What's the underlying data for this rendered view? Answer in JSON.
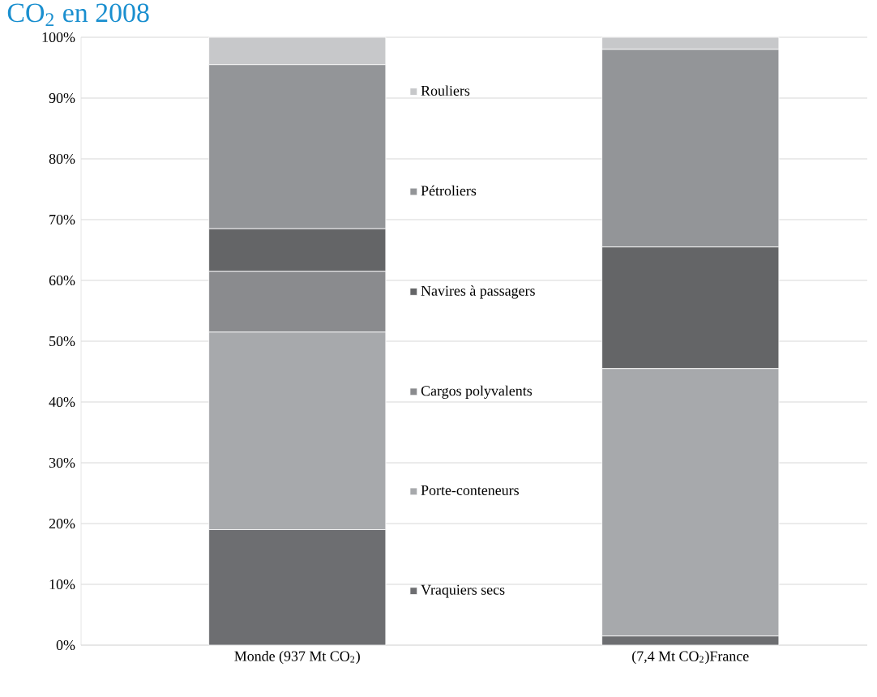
{
  "chart_data": {
    "type": "bar",
    "stacked": true,
    "title": "CO$_{2}$ en 2008",
    "categories": [
      "Monde (937 Mt CO$_{2}$)",
      "(7,4 Mt CO$_{2}$)France"
    ],
    "series": [
      {
        "name": "Vraquiers secs",
        "color": "#6d6e71",
        "values": [
          19,
          1.5
        ]
      },
      {
        "name": "Porte-conteneurs",
        "color": "#a7a9ac",
        "values": [
          32.5,
          44
        ]
      },
      {
        "name": "Cargos polyvalents",
        "color": "#8a8b8e",
        "values": [
          10,
          0
        ]
      },
      {
        "name": "Navires à passagers",
        "color": "#646567",
        "values": [
          7,
          20
        ]
      },
      {
        "name": "Pétroliers",
        "color": "#939598",
        "values": [
          27,
          32.5
        ]
      },
      {
        "name": "Rouliers",
        "color": "#c7c8ca",
        "values": [
          4.5,
          2
        ]
      }
    ],
    "ylim": [
      0,
      100
    ],
    "yticks": [
      {
        "value": 0,
        "label": "0%"
      },
      {
        "value": 10,
        "label": "10%"
      },
      {
        "value": 20,
        "label": "20%"
      },
      {
        "value": 30,
        "label": "30%"
      },
      {
        "value": 40,
        "label": "40%"
      },
      {
        "value": 50,
        "label": "50%"
      },
      {
        "value": 60,
        "label": "60%"
      },
      {
        "value": 70,
        "label": "70%"
      },
      {
        "value": 80,
        "label": "80%"
      },
      {
        "value": 90,
        "label": "90%"
      },
      {
        "value": 100,
        "label": "100%"
      }
    ],
    "grid": "y",
    "legend": "center"
  }
}
